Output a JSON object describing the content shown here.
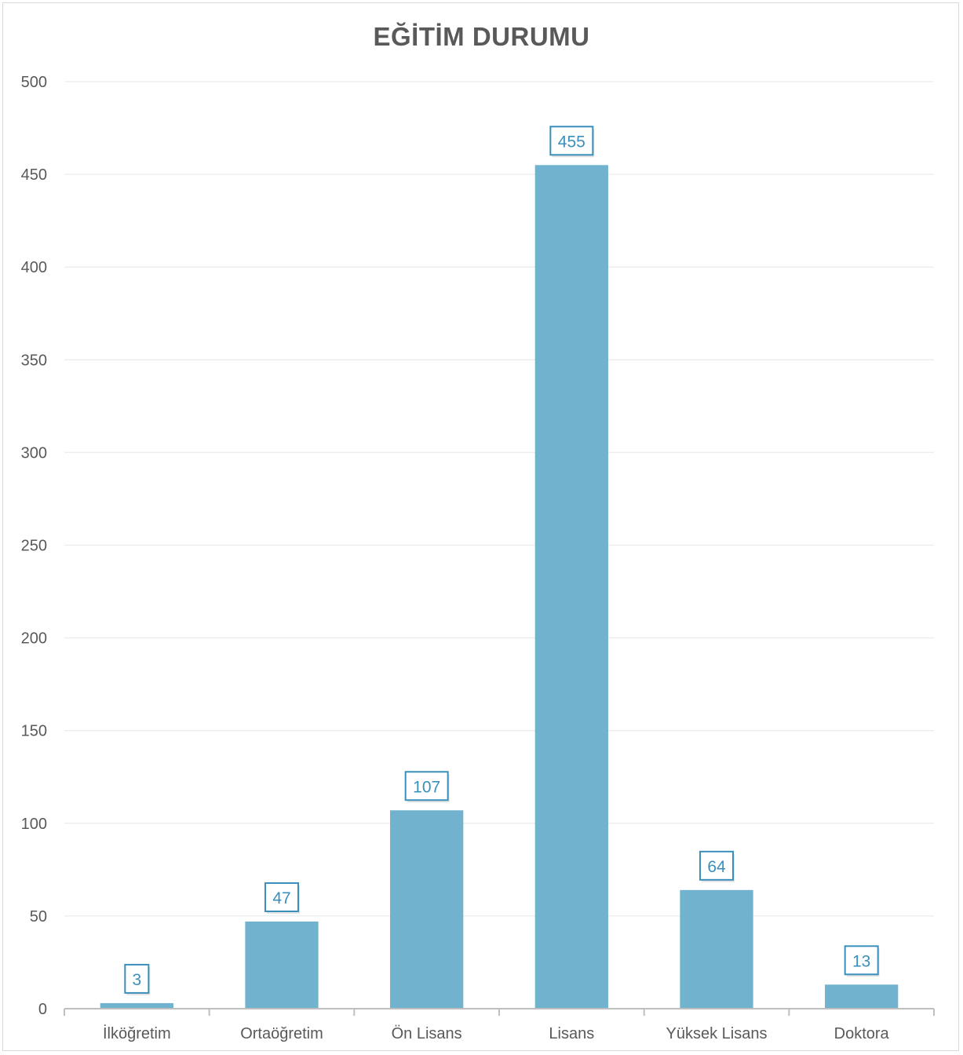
{
  "chart_data": {
    "type": "bar",
    "title": "EĞİTİM DURUMU",
    "categories": [
      "İlköğretim",
      "Ortaöğretim",
      "Ön Lisans",
      "Lisans",
      "Yüksek Lisans",
      "Doktora"
    ],
    "values": [
      3,
      47,
      107,
      455,
      64,
      13
    ],
    "ylim": [
      0,
      500
    ],
    "yticks": [
      0,
      50,
      100,
      150,
      200,
      250,
      300,
      350,
      400,
      450,
      500
    ],
    "xlabel": "",
    "ylabel": "",
    "grid": true,
    "legend": "none",
    "bar_color": "#71b3ce",
    "label_color": "#3a8fbd",
    "grid_color": "#ececec",
    "axis_color": "#bfbfbf"
  }
}
